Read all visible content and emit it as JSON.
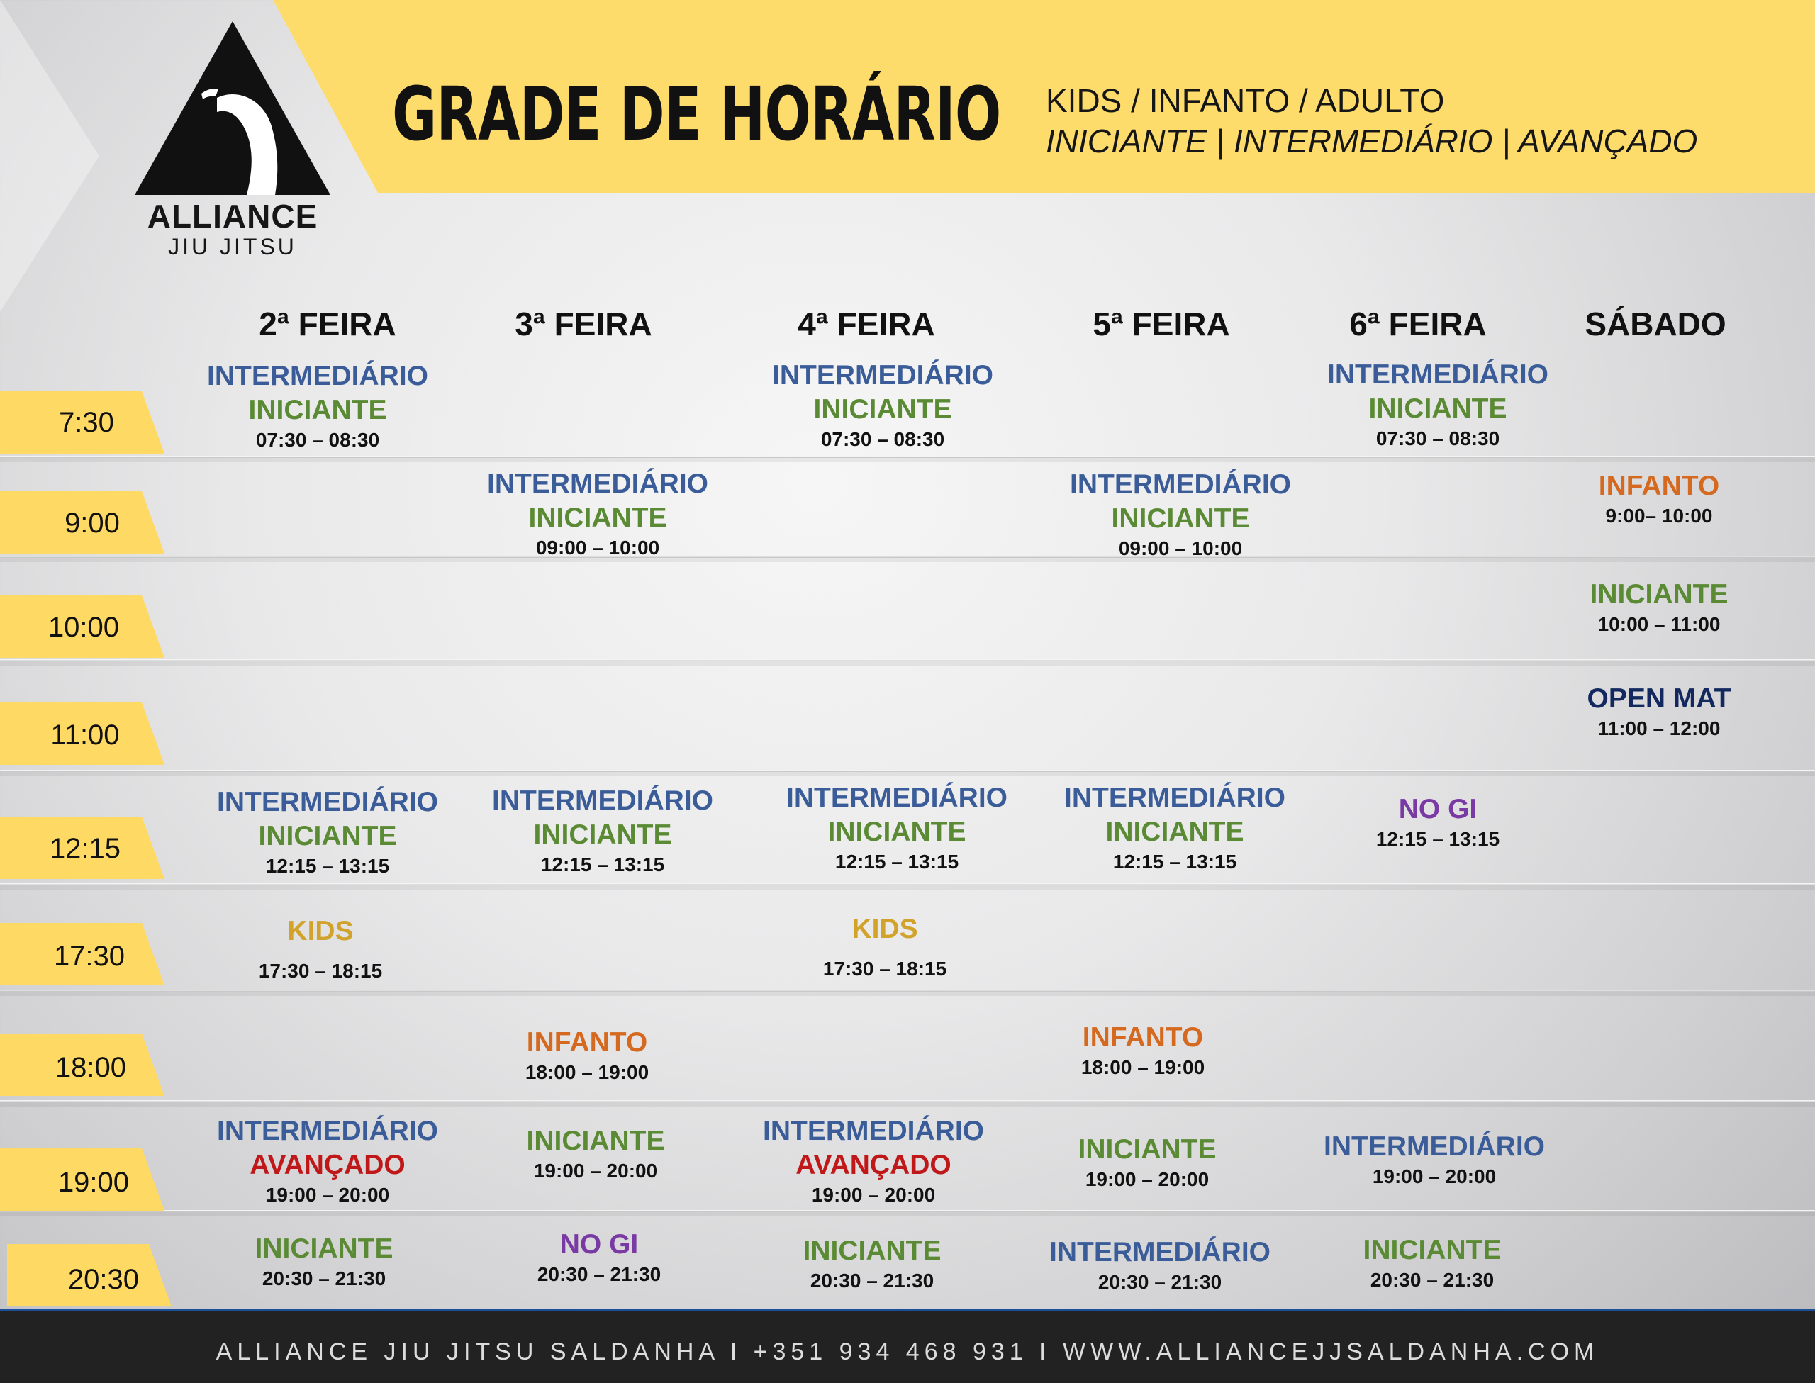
{
  "logo": {
    "name": "ALLIANCE",
    "sub": "JIU JITSU"
  },
  "header": {
    "title": "GRADE DE HORÁRIO",
    "subtitle_line1": "KIDS / INFANTO / ADULTO",
    "subtitle_line2": "INICIANTE | INTERMEDIÁRIO | AVANÇADO"
  },
  "days": [
    "2ª FEIRA",
    "3ª FEIRA",
    "4ª FEIRA",
    "5ª FEIRA",
    "6ª FEIRA",
    "SÁBADO"
  ],
  "times": [
    "7:30",
    "9:00",
    "10:00",
    "11:00",
    "12:15",
    "17:30",
    "18:00",
    "19:00",
    "20:30"
  ],
  "schedule": [
    {
      "day": "2ª FEIRA",
      "classes": [
        "INTERMEDIÁRIO",
        "INICIANTE"
      ],
      "hours": "07:30 – 08:30"
    },
    {
      "day": "4ª FEIRA",
      "classes": [
        "INTERMEDIÁRIO",
        "INICIANTE"
      ],
      "hours": "07:30 – 08:30"
    },
    {
      "day": "6ª FEIRA",
      "classes": [
        "INTERMEDIÁRIO",
        "INICIANTE"
      ],
      "hours": "07:30 – 08:30"
    },
    {
      "day": "3ª FEIRA",
      "classes": [
        "INTERMEDIÁRIO",
        "INICIANTE"
      ],
      "hours": "09:00 – 10:00"
    },
    {
      "day": "5ª FEIRA",
      "classes": [
        "INTERMEDIÁRIO",
        "INICIANTE"
      ],
      "hours": "09:00 – 10:00"
    },
    {
      "day": "SÁBADO",
      "classes": [
        "INFANTO"
      ],
      "hours": "9:00– 10:00"
    },
    {
      "day": "SÁBADO",
      "classes": [
        "INICIANTE"
      ],
      "hours": "10:00 – 11:00"
    },
    {
      "day": "SÁBADO",
      "classes": [
        "OPEN MAT"
      ],
      "hours": "11:00 – 12:00"
    },
    {
      "day": "2ª FEIRA",
      "classes": [
        "INTERMEDIÁRIO",
        "INICIANTE"
      ],
      "hours": "12:15 – 13:15"
    },
    {
      "day": "3ª FEIRA",
      "classes": [
        "INTERMEDIÁRIO",
        "INICIANTE"
      ],
      "hours": "12:15 – 13:15"
    },
    {
      "day": "4ª FEIRA",
      "classes": [
        "INTERMEDIÁRIO",
        "INICIANTE"
      ],
      "hours": "12:15 – 13:15"
    },
    {
      "day": "5ª FEIRA",
      "classes": [
        "INTERMEDIÁRIO",
        "INICIANTE"
      ],
      "hours": "12:15 – 13:15"
    },
    {
      "day": "6ª FEIRA",
      "classes": [
        "NO GI"
      ],
      "hours": "12:15 – 13:15"
    },
    {
      "day": "2ª FEIRA",
      "classes": [
        "KIDS"
      ],
      "hours": "17:30 – 18:15"
    },
    {
      "day": "4ª FEIRA",
      "classes": [
        "KIDS"
      ],
      "hours": "17:30 – 18:15"
    },
    {
      "day": "3ª FEIRA",
      "classes": [
        "INFANTO"
      ],
      "hours": "18:00 – 19:00"
    },
    {
      "day": "5ª FEIRA",
      "classes": [
        "INFANTO"
      ],
      "hours": "18:00 – 19:00"
    },
    {
      "day": "2ª FEIRA",
      "classes": [
        "INTERMEDIÁRIO",
        "AVANÇADO"
      ],
      "hours": "19:00 – 20:00"
    },
    {
      "day": "3ª FEIRA",
      "classes": [
        "INICIANTE"
      ],
      "hours": "19:00 – 20:00"
    },
    {
      "day": "4ª FEIRA",
      "classes": [
        "INTERMEDIÁRIO",
        "AVANÇADO"
      ],
      "hours": "19:00 – 20:00"
    },
    {
      "day": "5ª FEIRA",
      "classes": [
        "INICIANTE"
      ],
      "hours": "19:00 – 20:00"
    },
    {
      "day": "6ª FEIRA",
      "classes": [
        "INTERMEDIÁRIO"
      ],
      "hours": "19:00 – 20:00"
    },
    {
      "day": "2ª FEIRA",
      "classes": [
        "INICIANTE"
      ],
      "hours": "20:30 – 21:30"
    },
    {
      "day": "3ª FEIRA",
      "classes": [
        "NO GI"
      ],
      "hours": "20:30 – 21:30"
    },
    {
      "day": "4ª FEIRA",
      "classes": [
        "INICIANTE"
      ],
      "hours": "20:30 – 21:30"
    },
    {
      "day": "5ª FEIRA",
      "classes": [
        "INTERMEDIÁRIO"
      ],
      "hours": "20:30 – 21:30"
    },
    {
      "day": "6ª FEIRA",
      "classes": [
        "INICIANTE"
      ],
      "hours": "20:30 – 21:30"
    }
  ],
  "colors": {
    "header_yellow": "#fedc6c",
    "time_tab": "#fed964",
    "intermediario": "#3a5c98",
    "iniciante": "#5b8a34",
    "infanto": "#d4691f",
    "kids": "#d2a32b",
    "nogi": "#7a3aa3",
    "avancado": "#c01818",
    "open_mat": "#12285e",
    "footer": "#222222"
  },
  "footer": {
    "text": "ALLIANCE JIU JITSU SALDANHA I +351 934 468 931 I WWW.ALLIANCEJJSALDANHA.COM"
  }
}
